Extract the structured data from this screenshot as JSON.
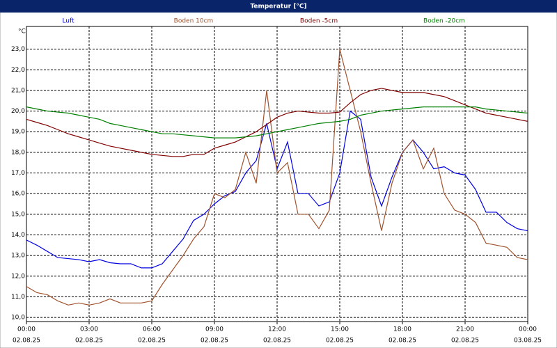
{
  "chart_data": {
    "type": "line",
    "title": "Temperatur [°C]",
    "y_label": "°C",
    "x": [
      0,
      0.5,
      1,
      1.5,
      2,
      2.5,
      3,
      3.5,
      4,
      4.5,
      5,
      5.5,
      6,
      6.5,
      7,
      7.5,
      8,
      8.5,
      9,
      9.5,
      10,
      10.5,
      11,
      11.5,
      12,
      12.5,
      13,
      13.5,
      14,
      14.5,
      15,
      15.5,
      16,
      16.5,
      17,
      17.5,
      18,
      18.5,
      19,
      19.5,
      20,
      20.5,
      21,
      21.5,
      22,
      22.5,
      23,
      23.5,
      24
    ],
    "series": [
      {
        "name": "Luft",
        "color": "#0000e0",
        "values": [
          13.75,
          13.5,
          13.2,
          12.9,
          12.85,
          12.8,
          12.7,
          12.8,
          12.65,
          12.6,
          12.6,
          12.4,
          12.4,
          12.6,
          13.2,
          13.8,
          14.7,
          15.0,
          15.5,
          15.9,
          16.1,
          17.0,
          17.6,
          19.4,
          17.2,
          18.5,
          16.0,
          16.0,
          15.4,
          15.6,
          17.0,
          20.0,
          19.6,
          16.8,
          15.4,
          16.8,
          18.0,
          18.6,
          18.0,
          17.2,
          17.3,
          17.0,
          16.9,
          16.2,
          15.1,
          15.1,
          14.6,
          14.3,
          14.2
        ]
      },
      {
        "name": "Boden 10cm",
        "color": "#a0522d",
        "values": [
          11.5,
          11.2,
          11.1,
          10.8,
          10.6,
          10.7,
          10.6,
          10.7,
          10.9,
          10.7,
          10.7,
          10.7,
          10.8,
          11.6,
          12.3,
          13.0,
          13.8,
          14.4,
          16.0,
          15.8,
          16.2,
          18.0,
          16.5,
          21.0,
          17.0,
          17.5,
          15.0,
          15.0,
          14.3,
          15.2,
          23.0,
          21.0,
          19.0,
          16.5,
          14.2,
          16.5,
          18.0,
          18.6,
          17.2,
          18.2,
          16.0,
          15.2,
          15.0,
          14.6,
          13.6,
          13.5,
          13.4,
          12.9,
          12.8
        ]
      },
      {
        "name": "Boden -5cm",
        "color": "#800000",
        "values": [
          19.6,
          19.45,
          19.3,
          19.1,
          18.9,
          18.75,
          18.6,
          18.45,
          18.3,
          18.2,
          18.1,
          18.0,
          17.9,
          17.85,
          17.8,
          17.8,
          17.9,
          17.9,
          18.2,
          18.35,
          18.5,
          18.75,
          19.0,
          19.35,
          19.7,
          19.9,
          20.0,
          19.95,
          19.9,
          19.9,
          19.95,
          20.4,
          20.8,
          21.0,
          21.1,
          21.0,
          20.9,
          20.9,
          20.9,
          20.8,
          20.7,
          20.5,
          20.3,
          20.1,
          19.9,
          19.8,
          19.7,
          19.6,
          19.5
        ]
      },
      {
        "name": "Boden -20cm",
        "color": "#008000",
        "values": [
          20.2,
          20.1,
          20.0,
          19.95,
          19.9,
          19.8,
          19.7,
          19.6,
          19.4,
          19.3,
          19.2,
          19.1,
          19.0,
          18.9,
          18.9,
          18.85,
          18.8,
          18.75,
          18.7,
          18.7,
          18.7,
          18.75,
          18.8,
          18.9,
          19.0,
          19.1,
          19.2,
          19.3,
          19.4,
          19.45,
          19.5,
          19.6,
          19.8,
          19.9,
          20.0,
          20.05,
          20.1,
          20.15,
          20.2,
          20.2,
          20.2,
          20.2,
          20.2,
          20.2,
          20.1,
          20.05,
          20.0,
          19.95,
          19.9
        ]
      }
    ],
    "xlim": [
      0,
      24
    ],
    "xticks": [
      {
        "value": 0,
        "label": "00:00"
      },
      {
        "value": 3,
        "label": "03:00"
      },
      {
        "value": 6,
        "label": "06:00"
      },
      {
        "value": 9,
        "label": "09:00"
      },
      {
        "value": 12,
        "label": "12:00"
      },
      {
        "value": 15,
        "label": "15:00"
      },
      {
        "value": 18,
        "label": "18:00"
      },
      {
        "value": 21,
        "label": "21:00"
      },
      {
        "value": 24,
        "label": "00:00"
      }
    ],
    "xtick_dates": [
      "02.08.25",
      "02.08.25",
      "02.08.25",
      "02.08.25",
      "02.08.25",
      "02.08.25",
      "02.08.25",
      "02.08.25",
      "03.08.25"
    ],
    "ylim": [
      9.8,
      24.1
    ],
    "yticks": [
      {
        "value": 10,
        "label": "10,0"
      },
      {
        "value": 11,
        "label": "11,0"
      },
      {
        "value": 12,
        "label": "12,0"
      },
      {
        "value": 13,
        "label": "13,0"
      },
      {
        "value": 14,
        "label": "14,0"
      },
      {
        "value": 15,
        "label": "15,0"
      },
      {
        "value": 16,
        "label": "16,0"
      },
      {
        "value": 17,
        "label": "17,0"
      },
      {
        "value": 18,
        "label": "18,0"
      },
      {
        "value": 19,
        "label": "19,0"
      },
      {
        "value": 20,
        "label": "20,0"
      },
      {
        "value": 21,
        "label": "21,0"
      },
      {
        "value": 22,
        "label": "22,0"
      },
      {
        "value": 23,
        "label": "23,0"
      }
    ],
    "grid": true,
    "legend": "top"
  }
}
